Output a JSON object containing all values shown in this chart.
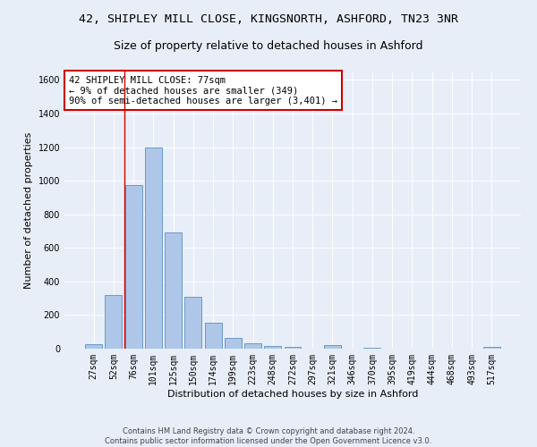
{
  "title_line1": "42, SHIPLEY MILL CLOSE, KINGSNORTH, ASHFORD, TN23 3NR",
  "title_line2": "Size of property relative to detached houses in Ashford",
  "xlabel": "Distribution of detached houses by size in Ashford",
  "ylabel": "Number of detached properties",
  "bar_labels": [
    "27sqm",
    "52sqm",
    "76sqm",
    "101sqm",
    "125sqm",
    "150sqm",
    "174sqm",
    "199sqm",
    "223sqm",
    "248sqm",
    "272sqm",
    "297sqm",
    "321sqm",
    "346sqm",
    "370sqm",
    "395sqm",
    "419sqm",
    "444sqm",
    "468sqm",
    "493sqm",
    "517sqm"
  ],
  "bar_values": [
    25,
    320,
    975,
    1200,
    690,
    310,
    155,
    65,
    30,
    15,
    10,
    0,
    20,
    0,
    5,
    0,
    0,
    0,
    0,
    0,
    10
  ],
  "bar_color": "#aec6e8",
  "bar_edge_color": "#5a8fc2",
  "background_color": "#e8eef7",
  "annotation_text": "42 SHIPLEY MILL CLOSE: 77sqm\n← 9% of detached houses are smaller (349)\n90% of semi-detached houses are larger (3,401) →",
  "annotation_box_color": "#ffffff",
  "annotation_box_edge_color": "#cc0000",
  "vline_x": 1.55,
  "vline_color": "#cc0000",
  "ylim": [
    0,
    1650
  ],
  "yticks": [
    0,
    200,
    400,
    600,
    800,
    1000,
    1200,
    1400,
    1600
  ],
  "footnote": "Contains HM Land Registry data © Crown copyright and database right 2024.\nContains public sector information licensed under the Open Government Licence v3.0.",
  "title_fontsize": 9.5,
  "subtitle_fontsize": 9,
  "label_fontsize": 8,
  "tick_fontsize": 7,
  "annot_fontsize": 7.5
}
